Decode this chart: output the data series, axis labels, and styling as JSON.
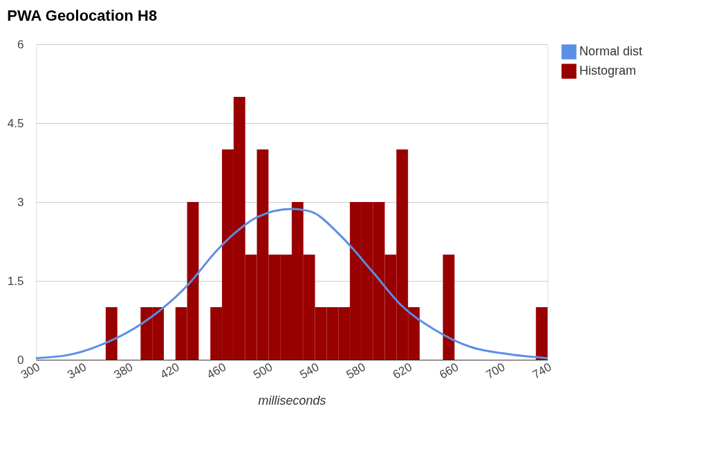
{
  "chart_data": {
    "type": "histogram",
    "title": "PWA Geolocation H8",
    "xlabel": "milliseconds",
    "xlim": [
      300,
      740
    ],
    "xticks": [
      300,
      340,
      380,
      420,
      460,
      500,
      540,
      580,
      620,
      660,
      700,
      740
    ],
    "ylim": [
      0,
      6
    ],
    "yticks": [
      0,
      1.5,
      3,
      4.5,
      6
    ],
    "grid": "y",
    "legend": "top right",
    "series": [
      {
        "name": "Normal dist",
        "type": "line",
        "color": "#5b8ee6",
        "x": [
          300,
          330,
          358,
          392,
          431,
          456,
          471,
          490,
          520,
          536,
          562,
          590,
          614,
          643,
          673,
          709,
          740
        ],
        "values": [
          0.03,
          0.1,
          0.3,
          0.7,
          1.43,
          2.09,
          2.41,
          2.71,
          2.87,
          2.82,
          2.36,
          1.66,
          1.04,
          0.57,
          0.25,
          0.1,
          0.03
        ]
      },
      {
        "name": "Histogram",
        "color": "#990000",
        "bins": [
          350,
          360,
          370,
          380,
          390,
          400,
          410,
          420,
          430,
          440,
          450,
          460,
          470,
          480,
          490,
          500,
          510,
          520,
          530,
          540,
          550,
          560,
          570,
          580,
          590,
          600,
          610,
          620,
          630,
          640,
          650,
          660,
          670,
          680,
          690,
          700,
          710,
          720,
          730,
          740
        ],
        "values": [
          0,
          1,
          0,
          0,
          1,
          1,
          0,
          1,
          3,
          0,
          1,
          4,
          5,
          2,
          4,
          2,
          2,
          3,
          2,
          1,
          1,
          1,
          3,
          3,
          3,
          2,
          4,
          1,
          0,
          0,
          2,
          0,
          0,
          0,
          0,
          0,
          0,
          0,
          1
        ]
      }
    ]
  }
}
